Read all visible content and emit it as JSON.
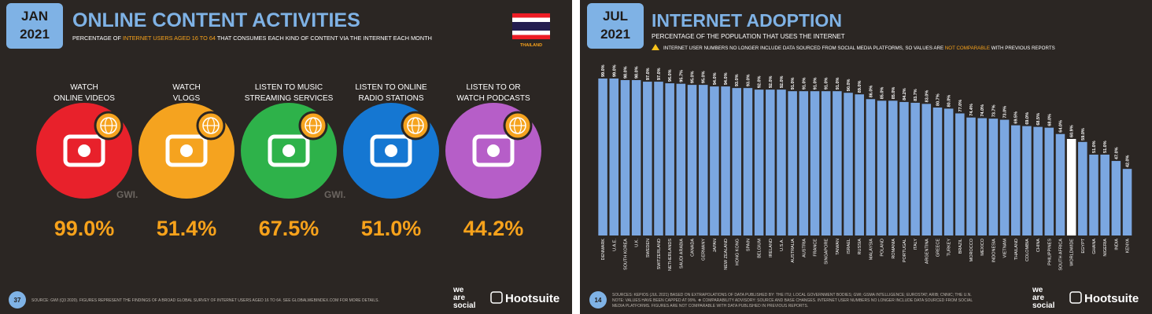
{
  "left_slide": {
    "date_month": "JAN",
    "date_year": "2021",
    "title": "ONLINE CONTENT ACTIVITIES",
    "subtitle_parts": [
      "PERCENTAGE OF ",
      "INTERNET USERS AGED 16 TO 64",
      " THAT CONSUMES EACH KIND OF CONTENT VIA THE INTERNET EACH MONTH"
    ],
    "country": "THAILAND",
    "items": [
      {
        "label_lines": [
          "WATCH",
          "ONLINE VIDEOS"
        ],
        "value": "99.0%",
        "color": "#e8212b"
      },
      {
        "label_lines": [
          "WATCH",
          "VLOGS"
        ],
        "value": "51.4%",
        "color": "#f5a31f"
      },
      {
        "label_lines": [
          "LISTEN TO MUSIC",
          "STREAMING SERVICES"
        ],
        "value": "67.5%",
        "color": "#2eb24a"
      },
      {
        "label_lines": [
          "LISTEN TO ONLINE",
          "RADIO STATIONS"
        ],
        "value": "51.0%",
        "color": "#1577d2"
      },
      {
        "label_lines": [
          "LISTEN TO OR",
          "WATCH PODCASTS"
        ],
        "value": "44.2%",
        "color": "#b65ec8"
      }
    ],
    "watermarks": [
      "GWI.",
      "GWI."
    ],
    "page_number": "37",
    "source": "SOURCE: GWI (Q3 2020). FIGURES REPRESENT THE FINDINGS OF A BROAD GLOBAL SURVEY OF INTERNET USERS AGED 16 TO 64. SEE GLOBALWEBINDEX.COM FOR MORE DETAILS.",
    "logo_left": [
      "we",
      "are",
      "social"
    ],
    "logo_right": "Hootsuite"
  },
  "chart_data": {
    "type": "bar",
    "date_month": "JUL",
    "date_year": "2021",
    "title": "INTERNET ADOPTION",
    "subtitle": "PERCENTAGE OF THE POPULATION THAT USES THE INTERNET",
    "advisory_parts": [
      "INTERNET USER NUMBERS NO LONGER INCLUDE DATA SOURCED FROM SOCIAL MEDIA PLATFORMS, SO VALUES ARE ",
      "NOT COMPARABLE",
      " WITH PREVIOUS REPORTS"
    ],
    "categories": [
      "DENMARK",
      "U.A.E.",
      "SOUTH KOREA",
      "U.K.",
      "SWEDEN",
      "SWITZERLAND",
      "NETHERLANDS",
      "SAUDI ARABIA",
      "CANADA",
      "GERMANY",
      "JAPAN",
      "NEW ZEALAND",
      "HONG KONG",
      "SPAIN",
      "BELGIUM",
      "IRELAND",
      "U.S.A.",
      "AUSTRALIA",
      "AUSTRIA",
      "FRANCE",
      "SINGAPORE",
      "TAIWAN",
      "ISRAEL",
      "RUSSIA",
      "MALAYSIA",
      "POLAND",
      "ROMANIA",
      "PORTUGAL",
      "ITALY",
      "ARGENTINA",
      "GREECE",
      "TURKEY",
      "BRAZIL",
      "MOROCCO",
      "MEXICO",
      "INDONESIA",
      "VIETNAM",
      "THAILAND",
      "COLOMBIA",
      "CHINA",
      "PHILIPPINES",
      "SOUTH AFRICA",
      "WORLDWIDE",
      "EGYPT",
      "GHANA",
      "NIGERIA",
      "INDIA",
      "KENYA"
    ],
    "values": [
      99.0,
      99.0,
      98.0,
      98.0,
      97.0,
      97.0,
      96.0,
      95.7,
      95.0,
      95.0,
      94.0,
      94.0,
      93.0,
      93.0,
      92.0,
      92.0,
      92.0,
      91.0,
      91.0,
      91.0,
      91.0,
      91.0,
      90.0,
      89.0,
      86.0,
      85.0,
      85.0,
      84.2,
      83.7,
      83.0,
      80.7,
      80.0,
      77.0,
      74.4,
      74.0,
      73.7,
      73.0,
      69.5,
      69.0,
      68.5,
      68.0,
      64.0,
      60.9,
      59.0,
      51.0,
      51.0,
      47.0,
      42.0
    ],
    "value_labels": [
      "99.0%",
      "99.0%",
      "98.0%",
      "98.0%",
      "97.0%",
      "97.0%",
      "96.0%",
      "95.7%",
      "95.0%",
      "95.0%",
      "94.0%",
      "94.0%",
      "93.0%",
      "93.0%",
      "92.0%",
      "92.0%",
      "92.0%",
      "91.0%",
      "91.0%",
      "91.0%",
      "91.0%",
      "91.0%",
      "90.0%",
      "89.0%",
      "86.0%",
      "85.0%",
      "85.0%",
      "84.2%",
      "83.7%",
      "83.0%",
      "80.7%",
      "80.0%",
      "77.0%",
      "74.4%",
      "74.0%",
      "73.7%",
      "73.0%",
      "69.5%",
      "69.0%",
      "68.5%",
      "68.0%",
      "64.0%",
      "60.9%",
      "59.0%",
      "51.0%",
      "51.0%",
      "47.0%",
      "42.0%"
    ],
    "color": "#7ba7e1",
    "highlight": {
      "category": "WORLDWIDE",
      "color": "#ffffff"
    },
    "page_number": "14",
    "source_lines": [
      "SOURCES: KEPIOS (JUL 2021) BASED ON EXTRAPOLATIONS OF DATA PUBLISHED BY: THE ITU; LOCAL GOVERNMENT BODIES; GWI; GSMA INTELLIGENCE; EUROSTAT; ARIB; CNNIC; THE U.N.",
      "NOTE: VALUES HAVE BEEN CAPPED AT 99%. ❖ COMPARABILITY ADVISORY: SOURCE AND BASE CHANGES. INTERNET USER NUMBERS NO LONGER INCLUDE DATA SOURCED FROM SOCIAL",
      "MEDIA PLATFORMS. FIGURES ARE NOT COMPARABLE WITH DATA PUBLISHED IN PREVIOUS REPORTS."
    ],
    "logo_left": [
      "we",
      "are",
      "social"
    ],
    "logo_right": "Hootsuite"
  }
}
